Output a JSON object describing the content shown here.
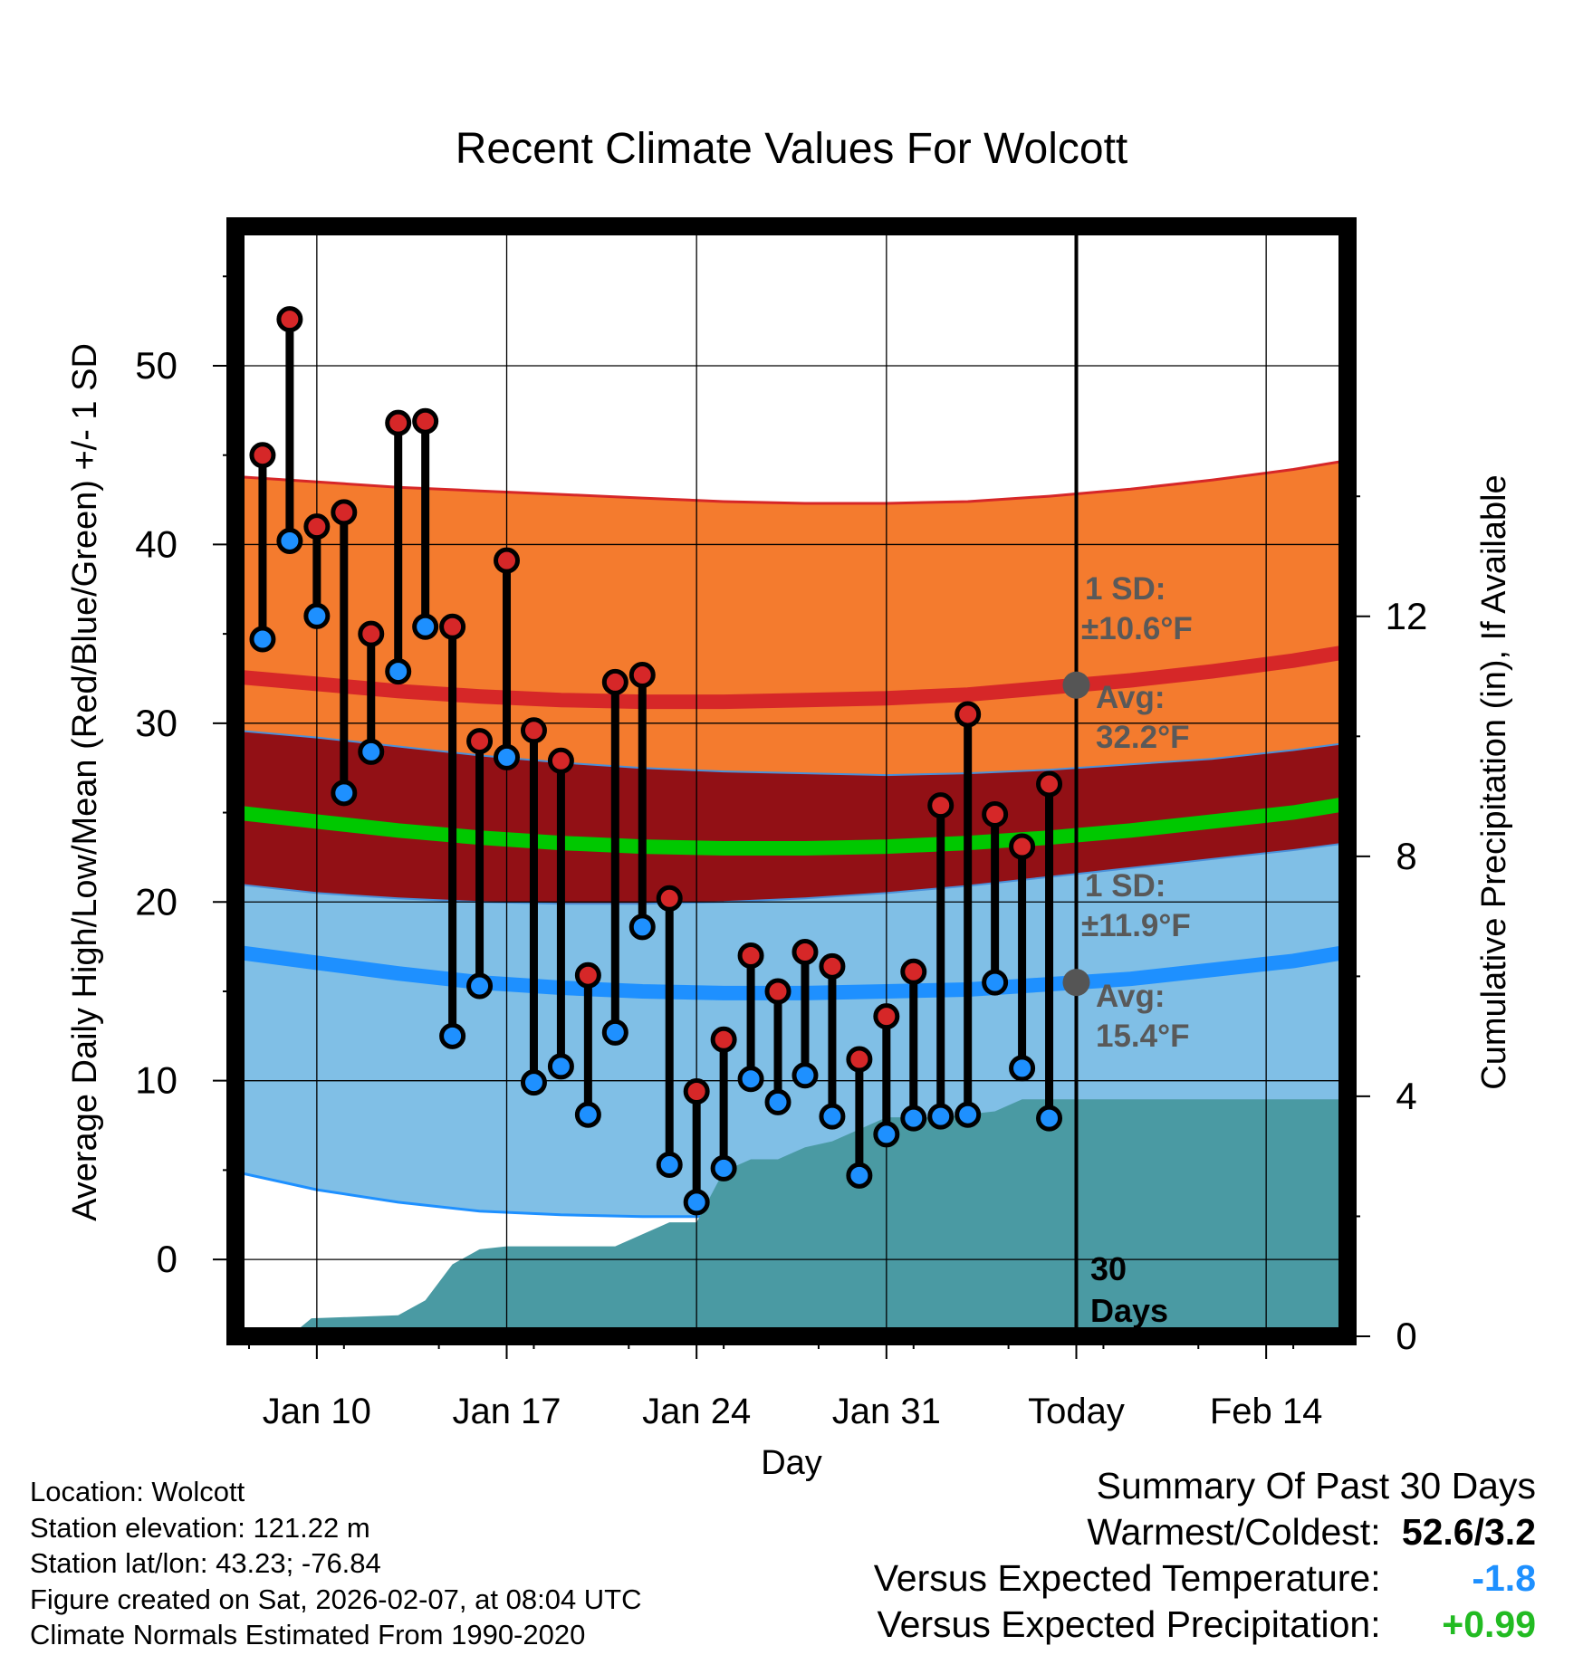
{
  "chart_data": {
    "type": "line",
    "title": "Recent Climate Values For Wolcott",
    "xlabel": "Day",
    "ylabel": "Average Daily High/Low/Mean (Red/Blue/Green) +/- 1 SD",
    "y2label": "Cumulative Precipitation (in), If Available",
    "x_range_days": [
      0,
      41
    ],
    "x_ticks": [
      {
        "day": 3,
        "label": "Jan 10"
      },
      {
        "day": 10,
        "label": "Jan 17"
      },
      {
        "day": 17,
        "label": "Jan 24"
      },
      {
        "day": 24,
        "label": "Jan 31"
      },
      {
        "day": 31,
        "label": "Today"
      },
      {
        "day": 38,
        "label": "Feb 14"
      }
    ],
    "ylim": [
      -4.3,
      57.8
    ],
    "y_ticks": [
      0,
      10,
      20,
      30,
      40,
      50
    ],
    "y2lim": [
      0,
      18.5
    ],
    "y2_ticks": [
      0,
      4,
      8,
      12
    ],
    "today_day": 31,
    "normals": {
      "day": [
        0,
        3,
        6,
        9,
        12,
        15,
        18,
        21,
        24,
        27,
        30,
        33,
        36,
        39,
        41
      ],
      "high_avg": [
        32.6,
        32.2,
        31.8,
        31.5,
        31.3,
        31.2,
        31.2,
        31.3,
        31.4,
        31.6,
        32.0,
        32.4,
        32.9,
        33.5,
        34.0
      ],
      "high_upper": [
        43.8,
        43.5,
        43.2,
        43.0,
        42.8,
        42.6,
        42.4,
        42.3,
        42.3,
        42.4,
        42.7,
        43.1,
        43.6,
        44.2,
        44.7
      ],
      "high_lower": [
        29.6,
        29.2,
        28.7,
        28.2,
        27.8,
        27.5,
        27.3,
        27.2,
        27.1,
        27.2,
        27.4,
        27.7,
        28.0,
        28.5,
        28.9
      ],
      "mean_avg": [
        25.0,
        24.5,
        24.0,
        23.6,
        23.3,
        23.1,
        23.0,
        23.0,
        23.1,
        23.3,
        23.6,
        24.0,
        24.5,
        25.0,
        25.5
      ],
      "low_avg": [
        17.2,
        16.6,
        16.0,
        15.5,
        15.2,
        15.0,
        14.9,
        14.9,
        15.0,
        15.1,
        15.4,
        15.7,
        16.2,
        16.7,
        17.2
      ],
      "low_upper": [
        21.0,
        20.5,
        20.2,
        20.0,
        19.9,
        19.9,
        20.0,
        20.2,
        20.5,
        20.9,
        21.4,
        21.9,
        22.4,
        22.9,
        23.3
      ],
      "low_lower": [
        4.9,
        3.9,
        3.2,
        2.7,
        2.5,
        2.4,
        2.4,
        2.5,
        2.6,
        2.8,
        3.1,
        3.6,
        4.1,
        4.8,
        5.4
      ]
    },
    "observations": {
      "day": [
        1,
        2,
        3,
        4,
        5,
        6,
        7,
        8,
        9,
        10,
        11,
        12,
        13,
        14,
        15,
        16,
        17,
        18,
        19,
        20,
        21,
        22,
        23,
        24,
        25,
        26,
        27,
        28,
        29,
        30
      ],
      "high": [
        45.0,
        52.6,
        41.0,
        41.8,
        35.0,
        46.8,
        46.9,
        35.4,
        29.0,
        39.1,
        29.6,
        27.9,
        15.9,
        32.3,
        32.7,
        20.2,
        9.4,
        12.3,
        17.0,
        15.0,
        17.2,
        16.4,
        11.2,
        13.6,
        16.1,
        25.4,
        30.5,
        24.9,
        23.1,
        26.6
      ],
      "low": [
        34.7,
        40.2,
        36.0,
        26.1,
        28.4,
        32.9,
        35.4,
        12.5,
        15.3,
        28.1,
        9.9,
        10.8,
        8.1,
        12.7,
        18.6,
        5.3,
        3.2,
        5.1,
        10.1,
        8.8,
        10.3,
        8.0,
        4.7,
        7.0,
        7.9,
        8.0,
        8.1,
        15.5,
        10.7,
        7.9
      ]
    },
    "precipitation_cumulative": {
      "day": [
        0,
        2,
        2.8,
        6,
        7,
        8,
        9,
        10,
        14,
        16,
        17,
        18,
        19,
        20,
        21,
        22,
        23,
        24,
        26,
        28,
        29,
        31,
        41
      ],
      "value": [
        0,
        0,
        0.3,
        0.35,
        0.6,
        1.2,
        1.45,
        1.5,
        1.5,
        1.9,
        1.9,
        2.75,
        2.95,
        2.95,
        3.15,
        3.25,
        3.45,
        3.65,
        3.65,
        3.75,
        3.95,
        3.95,
        3.95
      ]
    },
    "annotations": {
      "high_sd_label": "1 SD:",
      "high_sd_value": "±10.6°F",
      "high_avg_label": "Avg:",
      "high_avg_value": "32.2°F",
      "low_sd_label": "1 SD:",
      "low_sd_value": "±11.9°F",
      "low_avg_label": "Avg:",
      "low_avg_value": "15.4°F",
      "days_number": "30",
      "days_word": "Days"
    },
    "colors": {
      "high_band": "#f47b2e",
      "high_line": "#d62728",
      "mean_band": "#921015",
      "mean_line": "#00c800",
      "low_band": "#80bfe6",
      "low_line": "#1e90ff",
      "precip": "#4a9aa3",
      "high_marker": "#d62728",
      "low_marker": "#1e90ff",
      "annotation": "#595959"
    }
  },
  "info": {
    "location": "Location: Wolcott",
    "elevation": "Station elevation: 121.22 m",
    "latlon": "Station lat/lon: 43.23; -76.84",
    "created": "Figure created on Sat, 2026-02-07, at 08:04 UTC",
    "normals": "Climate Normals Estimated From 1990-2020"
  },
  "summary": {
    "title": "Summary Of Past 30 Days",
    "warm_cold_label": "Warmest/Coldest:",
    "warm_cold_value": "52.6/3.2",
    "temp_label": "Versus Expected Temperature:",
    "temp_value": "-1.8",
    "temp_color": "#1e90ff",
    "precip_label": "Versus Expected Precipitation:",
    "precip_value": "+0.99",
    "precip_color": "#22bb22"
  }
}
